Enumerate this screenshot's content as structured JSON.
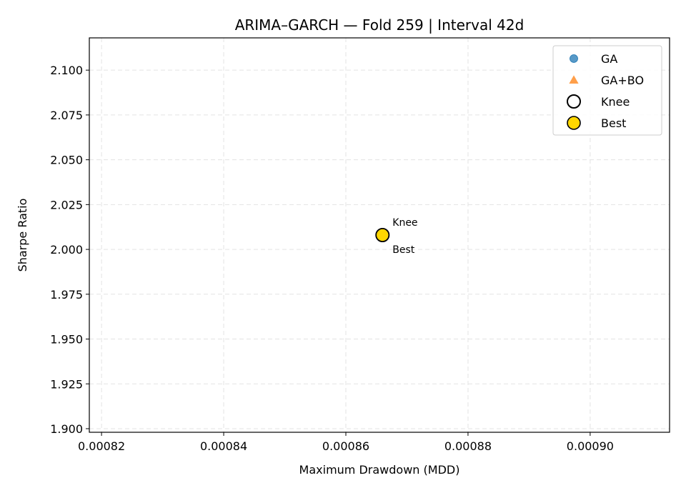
{
  "chart_data": {
    "type": "scatter",
    "title": "ARIMA–GARCH — Fold 259 | Interval 42d",
    "xlabel": "Maximum Drawdown (MDD)",
    "ylabel": "Sharpe Ratio",
    "xlim": [
      0.000818,
      0.000913
    ],
    "ylim": [
      1.898,
      2.118
    ],
    "xticks": [
      0.00082,
      0.00084,
      0.00086,
      0.00088,
      0.0009
    ],
    "xtick_labels": [
      "0.00082",
      "0.00084",
      "0.00086",
      "0.00088",
      "0.00090"
    ],
    "yticks": [
      1.9,
      1.925,
      1.95,
      1.975,
      2.0,
      2.025,
      2.05,
      2.075,
      2.1
    ],
    "ytick_labels": [
      "1.900",
      "1.925",
      "1.950",
      "1.975",
      "2.000",
      "2.025",
      "2.050",
      "2.075",
      "2.100"
    ],
    "grid": true,
    "legend_position": "top-right",
    "series": [
      {
        "name": "GA",
        "marker": "circle",
        "color": "#1f77b4",
        "points": [
          {
            "x": 0.000866,
            "y": 2.008
          }
        ]
      },
      {
        "name": "GA+BO",
        "marker": "triangle",
        "color": "#ff7f0e",
        "points": []
      },
      {
        "name": "Knee",
        "marker": "hollow-circle",
        "color": "#000000",
        "points": [
          {
            "x": 0.000866,
            "y": 2.008
          }
        ]
      },
      {
        "name": "Best",
        "marker": "gold-circle",
        "color": "#ffd700",
        "points": [
          {
            "x": 0.000866,
            "y": 2.008
          }
        ]
      }
    ],
    "annotations": [
      {
        "text": "Knee",
        "x": 0.000866,
        "y": 2.008,
        "placement": "above-right"
      },
      {
        "text": "Best",
        "x": 0.000866,
        "y": 2.008,
        "placement": "below-right"
      }
    ]
  }
}
